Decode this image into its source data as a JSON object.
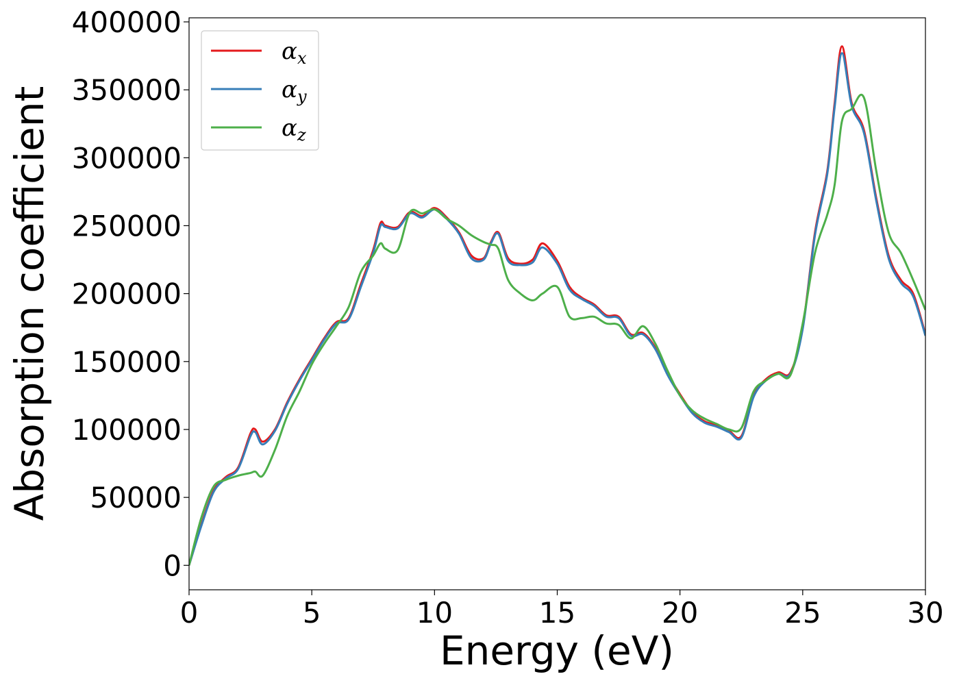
{
  "chart_data": {
    "type": "line",
    "xlabel": "Energy (eV)",
    "ylabel": "Absorption coefficient",
    "xlim": [
      0,
      30
    ],
    "ylim": [
      -18000,
      403000
    ],
    "xticks": [
      0,
      5,
      10,
      15,
      20,
      25,
      30
    ],
    "yticks": [
      0,
      50000,
      100000,
      150000,
      200000,
      250000,
      300000,
      350000,
      400000
    ],
    "grid": false,
    "legend_position": "top-left",
    "series": [
      {
        "name": "α_x",
        "legend_symbol": "α",
        "legend_subscript": "x",
        "color": "#e41a1c",
        "x": [
          0,
          0.5,
          1,
          1.5,
          2,
          2.5,
          2.7,
          3,
          3.5,
          4,
          4.5,
          5,
          5.5,
          6,
          6.5,
          7,
          7.5,
          7.8,
          8,
          8.5,
          9,
          9.5,
          10,
          10.5,
          11,
          11.5,
          12,
          12.3,
          12.6,
          13,
          13.5,
          14,
          14.4,
          15,
          15.5,
          16,
          16.5,
          17,
          17.5,
          18,
          18.5,
          19,
          19.5,
          20,
          20.5,
          21,
          21.5,
          22,
          22.5,
          23,
          23.5,
          24,
          24.5,
          25,
          25.5,
          26,
          26.3,
          26.6,
          27,
          27.5,
          28,
          28.5,
          29,
          29.5,
          30
        ],
        "y": [
          0,
          30000,
          55000,
          65000,
          72000,
          97000,
          100000,
          91000,
          100000,
          120000,
          137000,
          152000,
          167000,
          179000,
          182000,
          207000,
          232000,
          252000,
          250000,
          249000,
          260000,
          257000,
          263000,
          256000,
          245000,
          228000,
          226000,
          238000,
          245000,
          226000,
          222000,
          225000,
          237000,
          224000,
          205000,
          197000,
          192000,
          184000,
          183000,
          170000,
          171000,
          160000,
          141000,
          126000,
          113000,
          106000,
          103000,
          99000,
          95000,
          125000,
          137000,
          142000,
          142000,
          175000,
          245000,
          290000,
          340000,
          382000,
          340000,
          320000,
          270000,
          228000,
          210000,
          200000,
          170000
        ]
      },
      {
        "name": "α_y",
        "legend_symbol": "α",
        "legend_subscript": "y",
        "color": "#377eb8",
        "x": [
          0,
          0.5,
          1,
          1.5,
          2,
          2.5,
          2.7,
          3,
          3.5,
          4,
          4.5,
          5,
          5.5,
          6,
          6.5,
          7,
          7.5,
          7.8,
          8,
          8.5,
          9,
          9.5,
          10,
          10.5,
          11,
          11.5,
          12,
          12.3,
          12.6,
          13,
          13.5,
          14,
          14.4,
          15,
          15.5,
          16,
          16.5,
          17,
          17.5,
          18,
          18.5,
          19,
          19.5,
          20,
          20.5,
          21,
          21.5,
          22,
          22.5,
          23,
          23.5,
          24,
          24.5,
          25,
          25.5,
          26,
          26.3,
          26.6,
          27,
          27.5,
          28,
          28.5,
          29,
          29.5,
          30
        ],
        "y": [
          0,
          29000,
          54000,
          64000,
          71000,
          95000,
          98000,
          89000,
          99000,
          119000,
          136000,
          151000,
          166000,
          178000,
          181000,
          205000,
          230000,
          250000,
          249000,
          248000,
          259000,
          256000,
          262000,
          255000,
          244000,
          226000,
          225000,
          237000,
          244000,
          224000,
          221000,
          223000,
          234000,
          222000,
          203000,
          196000,
          191000,
          183000,
          182000,
          169000,
          170000,
          159000,
          140000,
          125000,
          112000,
          105000,
          102000,
          98000,
          94000,
          124000,
          136000,
          141000,
          141000,
          174000,
          243000,
          288000,
          337000,
          377000,
          338000,
          318000,
          268000,
          226000,
          208000,
          198000,
          169000
        ]
      },
      {
        "name": "α_z",
        "legend_symbol": "α",
        "legend_subscript": "z",
        "color": "#4daf4a",
        "x": [
          0,
          0.5,
          1,
          1.5,
          2,
          2.5,
          2.7,
          3,
          3.5,
          4,
          4.5,
          5,
          5.5,
          6,
          6.5,
          7,
          7.5,
          7.8,
          8,
          8.5,
          9,
          9.5,
          10,
          10.5,
          11,
          11.5,
          12,
          12.3,
          12.6,
          13,
          13.5,
          14,
          14.4,
          15,
          15.5,
          16,
          16.5,
          17,
          17.5,
          18,
          18.5,
          19,
          19.5,
          20,
          20.5,
          21,
          21.5,
          22,
          22.5,
          23,
          23.5,
          24,
          24.5,
          25,
          25.5,
          26,
          26.3,
          26.6,
          27,
          27.5,
          28,
          28.5,
          29,
          29.5,
          30
        ],
        "y": [
          0,
          35000,
          58000,
          63000,
          66000,
          68000,
          69000,
          66000,
          85000,
          110000,
          128000,
          148000,
          163000,
          176000,
          190000,
          216000,
          228000,
          237000,
          233000,
          232000,
          260000,
          259000,
          262000,
          255000,
          250000,
          243000,
          238000,
          236000,
          233000,
          210000,
          200000,
          195000,
          200000,
          205000,
          183000,
          182000,
          183000,
          178000,
          177000,
          167000,
          176000,
          163000,
          143000,
          125000,
          114000,
          108000,
          104000,
          100000,
          101000,
          128000,
          136000,
          141000,
          140000,
          178000,
          230000,
          258000,
          280000,
          327000,
          336000,
          344000,
          290000,
          245000,
          230000,
          210000,
          188000
        ]
      }
    ]
  }
}
